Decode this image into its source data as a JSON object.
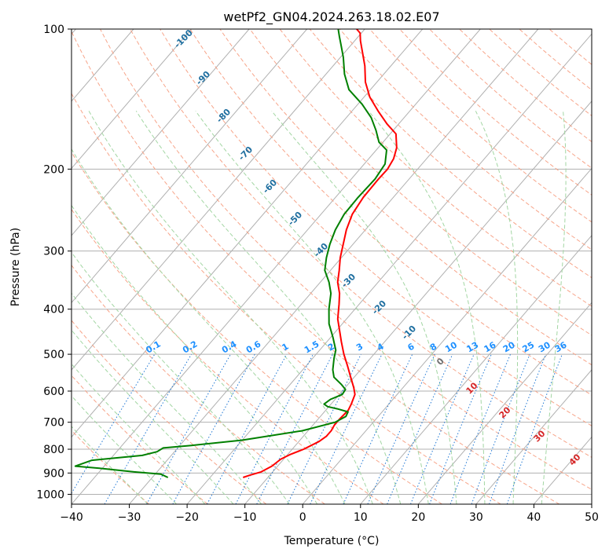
{
  "chart_data": {
    "type": "line",
    "title": "wetPf2_GN04.2024.263.18.02.E07",
    "xlabel": "Temperature (°C)",
    "ylabel": "Pressure (hPa)",
    "xlim": [
      -40,
      50
    ],
    "ylim": [
      1050,
      100
    ],
    "yscale": "log",
    "grid": true,
    "x_ticks": [
      "−40",
      "−30",
      "−20",
      "−10",
      "0",
      "10",
      "20",
      "30",
      "40",
      "50"
    ],
    "y_ticks": [
      "1000",
      "900",
      "800",
      "700",
      "600",
      "500",
      "400",
      "300",
      "200",
      "100"
    ],
    "series": [
      {
        "color": "#ff0000",
        "points": [
          [
            -14.3,
            920
          ],
          [
            -13.5,
            910
          ],
          [
            -12,
            895
          ],
          [
            -11,
            870
          ],
          [
            -10.5,
            840
          ],
          [
            -9.5,
            820
          ],
          [
            -8,
            800
          ],
          [
            -6.5,
            770
          ],
          [
            -6,
            750
          ],
          [
            -6,
            730
          ],
          [
            -6.3,
            710
          ],
          [
            -6.3,
            690
          ],
          [
            -6.1,
            660
          ],
          [
            -6.5,
            640
          ],
          [
            -7.3,
            610
          ],
          [
            -8.5,
            590
          ],
          [
            -10.6,
            560
          ],
          [
            -12.8,
            530
          ],
          [
            -15.2,
            500
          ],
          [
            -17.5,
            470
          ],
          [
            -21.5,
            420
          ],
          [
            -23.5,
            390
          ],
          [
            -25,
            370
          ],
          [
            -27,
            350
          ],
          [
            -28.5,
            330
          ],
          [
            -30.2,
            310
          ],
          [
            -31.7,
            290
          ],
          [
            -33.3,
            270
          ],
          [
            -34.6,
            250
          ],
          [
            -35.2,
            230
          ],
          [
            -35.3,
            210
          ],
          [
            -35.2,
            200
          ],
          [
            -35.7,
            190
          ],
          [
            -36.8,
            180
          ],
          [
            -39,
            168
          ],
          [
            -42,
            160
          ],
          [
            -45.5,
            150
          ],
          [
            -49,
            140
          ],
          [
            -52,
            130
          ],
          [
            -54.5,
            120
          ],
          [
            -57,
            112
          ],
          [
            -59,
            106
          ],
          [
            -60.2,
            102
          ],
          [
            -61.4,
            100
          ]
        ]
      },
      {
        "color": "#008000",
        "points": [
          [
            -27.3,
            920
          ],
          [
            -29,
            905
          ],
          [
            -34,
            895
          ],
          [
            -40,
            880
          ],
          [
            -45,
            870
          ],
          [
            -43,
            845
          ],
          [
            -35,
            825
          ],
          [
            -33,
            810
          ],
          [
            -32.5,
            795
          ],
          [
            -28,
            785
          ],
          [
            -20,
            765
          ],
          [
            -11,
            730
          ],
          [
            -6.6,
            700
          ],
          [
            -5.6,
            680
          ],
          [
            -5.9,
            665
          ],
          [
            -8.2,
            655
          ],
          [
            -10.2,
            648
          ],
          [
            -11.2,
            640
          ],
          [
            -10.8,
            625
          ],
          [
            -9.5,
            610
          ],
          [
            -9.7,
            595
          ],
          [
            -11.2,
            580
          ],
          [
            -13.5,
            560
          ],
          [
            -14.8,
            540
          ],
          [
            -16.3,
            510
          ],
          [
            -17.2,
            490
          ],
          [
            -19.6,
            460
          ],
          [
            -22.3,
            430
          ],
          [
            -24.5,
            400
          ],
          [
            -26.5,
            370
          ],
          [
            -28.5,
            350
          ],
          [
            -31,
            330
          ],
          [
            -32.6,
            310
          ],
          [
            -34,
            290
          ],
          [
            -35.2,
            270
          ],
          [
            -36,
            250
          ],
          [
            -36.1,
            230
          ],
          [
            -35.9,
            210
          ],
          [
            -36.4,
            195
          ],
          [
            -38.2,
            182
          ],
          [
            -40.7,
            175
          ],
          [
            -43,
            165
          ],
          [
            -45.7,
            155
          ],
          [
            -49.3,
            145
          ],
          [
            -53.7,
            135
          ],
          [
            -56.8,
            125
          ],
          [
            -59.5,
            115
          ],
          [
            -61.8,
            108
          ],
          [
            -63.2,
            104
          ],
          [
            -64.6,
            100
          ]
        ]
      }
    ],
    "dry_adiabat_labels": [
      "-100",
      "-90",
      "-80",
      "-70",
      "-60",
      "-50",
      "-40",
      "-30",
      "-20",
      "-10",
      "0",
      "10",
      "20",
      "30",
      "40"
    ],
    "mixing_ratio_labels": [
      "0.1",
      "0.2",
      "0.4",
      "0.6",
      "1",
      "1.5",
      "2",
      "3",
      "4",
      "6",
      "8",
      "10",
      "13",
      "16",
      "20",
      "25",
      "30",
      "36"
    ],
    "colors": {
      "isotherm": "#b0b0b0",
      "isobar": "#b0b0b0",
      "dry_adiabat": "#f7a58a",
      "moist_adiabat": "#a3d6a3",
      "mixing_ratio": "#1f77d4",
      "dry_label_cold": "#1f6fa0",
      "dry_label_warm": "#d62728",
      "mixing_label": "#1e90ff",
      "temperature": "#ff0000",
      "dewpoint": "#008000"
    }
  }
}
